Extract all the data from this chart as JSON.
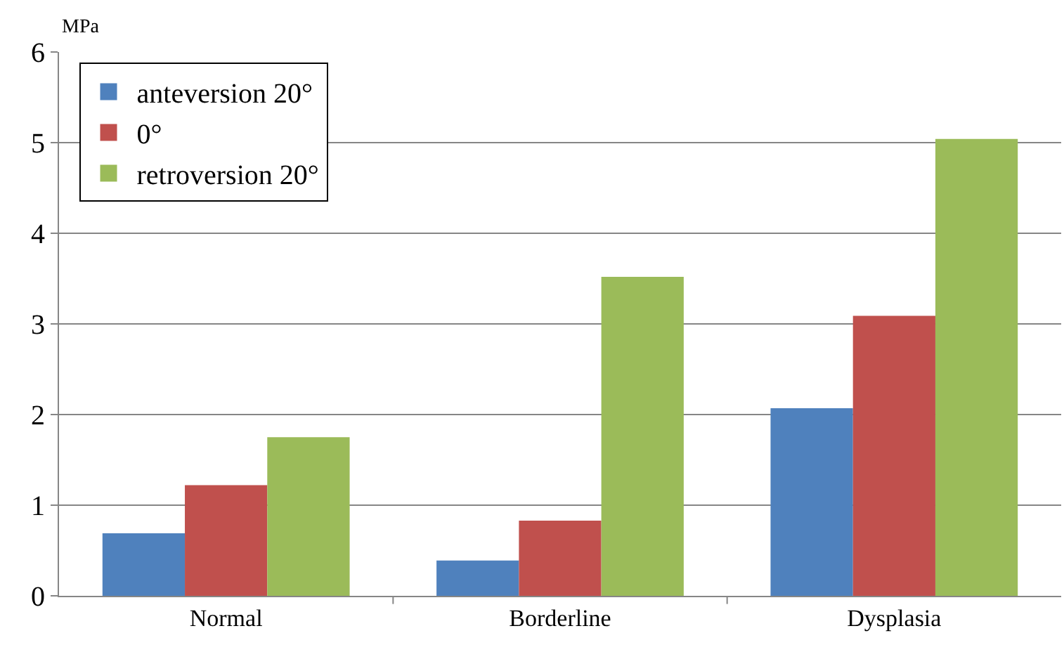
{
  "chart_data": {
    "type": "bar",
    "ylabel": "MPa",
    "categories": [
      "Normal",
      "Borderline",
      "Dysplasia"
    ],
    "series": [
      {
        "name": "anteversion 20°",
        "color": "#4f81bd",
        "values": [
          0.69,
          0.39,
          2.07
        ]
      },
      {
        "name": "0°",
        "color": "#c0504d",
        "values": [
          1.22,
          0.83,
          3.09
        ]
      },
      {
        "name": "retroversion 20°",
        "color": "#9bbb59",
        "values": [
          1.75,
          3.52,
          5.04
        ]
      }
    ],
    "ylim": [
      0,
      6
    ],
    "yticks": [
      0,
      1,
      2,
      3,
      4,
      5,
      6
    ],
    "grid": "y",
    "legend": "top left"
  }
}
